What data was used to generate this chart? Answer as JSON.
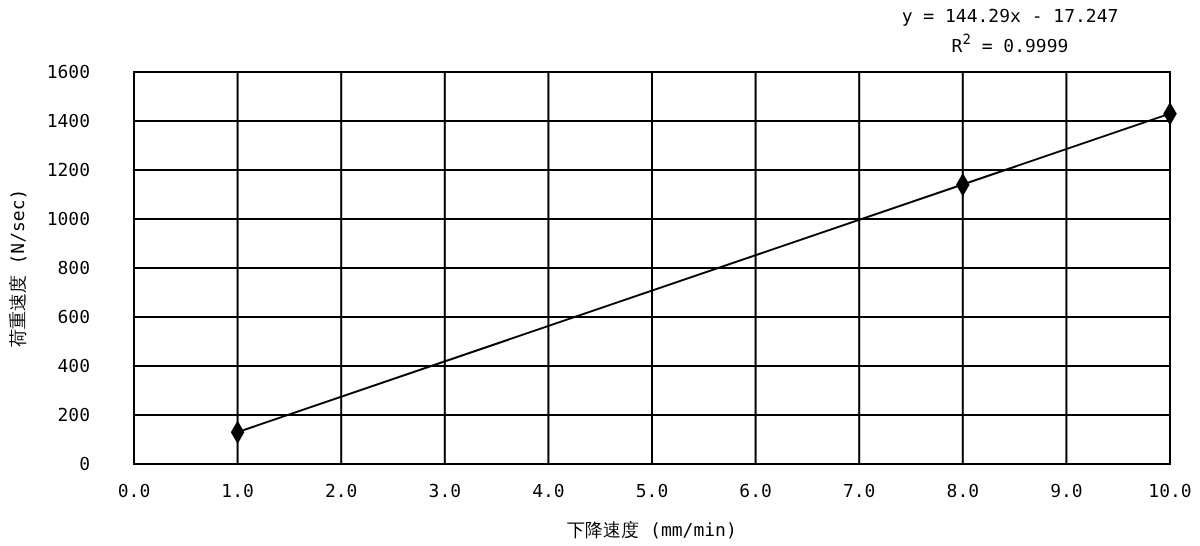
{
  "chart_data": {
    "type": "scatter",
    "xlabel": "下降速度 (mm/min)",
    "ylabel": "荷重速度 (N/sec)",
    "annotations": [
      "y = 144.29x - 17.247",
      "R$^{2}$ = 0.9999"
    ],
    "xlim": [
      0,
      10
    ],
    "xticks": [
      {
        "value": 0,
        "label": "0.0"
      },
      {
        "value": 1,
        "label": "1.0"
      },
      {
        "value": 2,
        "label": "2.0"
      },
      {
        "value": 3,
        "label": "3.0"
      },
      {
        "value": 4,
        "label": "4.0"
      },
      {
        "value": 5,
        "label": "5.0"
      },
      {
        "value": 6,
        "label": "6.0"
      },
      {
        "value": 7,
        "label": "7.0"
      },
      {
        "value": 8,
        "label": "8.0"
      },
      {
        "value": 9,
        "label": "9.0"
      },
      {
        "value": 10,
        "label": "10.0"
      }
    ],
    "ylim": [
      0,
      1600
    ],
    "yticks": [
      0,
      200,
      400,
      600,
      800,
      1000,
      1200,
      1400,
      1600
    ],
    "grid": true,
    "series": [
      {
        "type": "line",
        "color": "#000000",
        "x": [
          1,
          10
        ],
        "values": [
          130,
          1430
        ],
        "marker": "none",
        "line_style": "solid"
      },
      {
        "color": "#000000",
        "x": [
          1,
          8,
          10
        ],
        "values": [
          130,
          1140,
          1430
        ],
        "marker": "diamond"
      }
    ]
  }
}
